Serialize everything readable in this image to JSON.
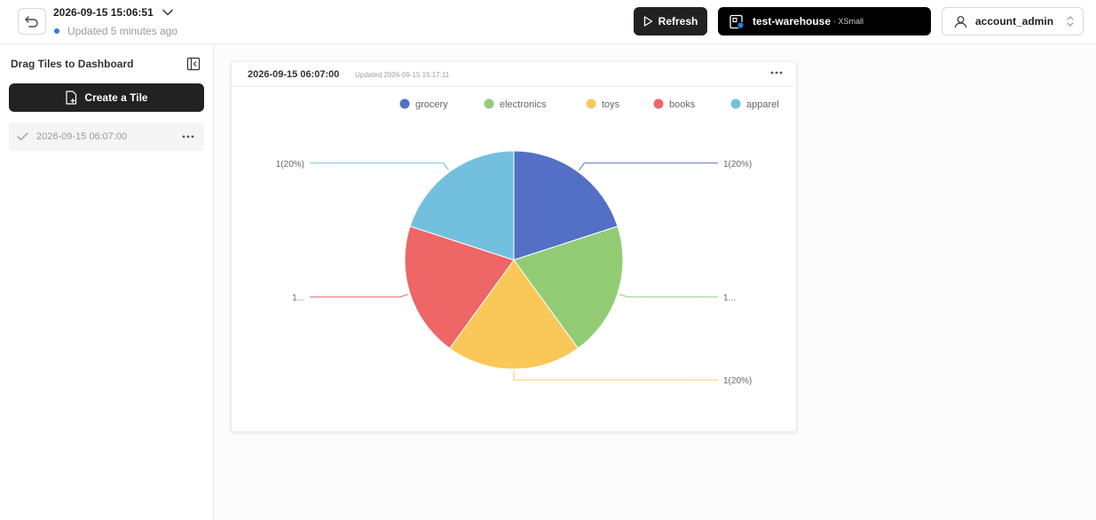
{
  "header": {
    "title": "2026-09-15 15:06:51",
    "status": "Updated 5 minutes ago",
    "refresh_label": "Refresh",
    "warehouse_name": "test-warehouse",
    "warehouse_size": "· XSmall",
    "account": "account_admin"
  },
  "sidebar": {
    "title": "Drag Tiles to Dashboard",
    "create_label": "Create a Tile",
    "items": [
      {
        "label": "2026-09-15 06:07:00"
      }
    ]
  },
  "tile": {
    "title": "2026-09-15 06:07:00",
    "updated": "Updated 2026-09-15 15:17:11"
  },
  "chart_data": {
    "type": "pie",
    "categories": [
      "grocery",
      "electronics",
      "toys",
      "books",
      "apparel"
    ],
    "values": [
      1,
      1,
      1,
      1,
      1
    ],
    "labels": [
      "1(20%)",
      "1...",
      "1(20%)",
      "1...",
      "1(20%)"
    ],
    "colors": [
      "#5470c6",
      "#91cc75",
      "#fac858",
      "#ee6666",
      "#73c0de"
    ],
    "legend": "top-right"
  },
  "icons": {
    "back": "undo-icon",
    "caret": "chevron-down-icon",
    "refresh": "play-icon",
    "warehouse": "warehouse-icon",
    "account": "user-icon",
    "collapse": "sidebar-collapse-icon",
    "create": "file-plus-icon",
    "check": "check-icon",
    "more": "more-icon"
  }
}
